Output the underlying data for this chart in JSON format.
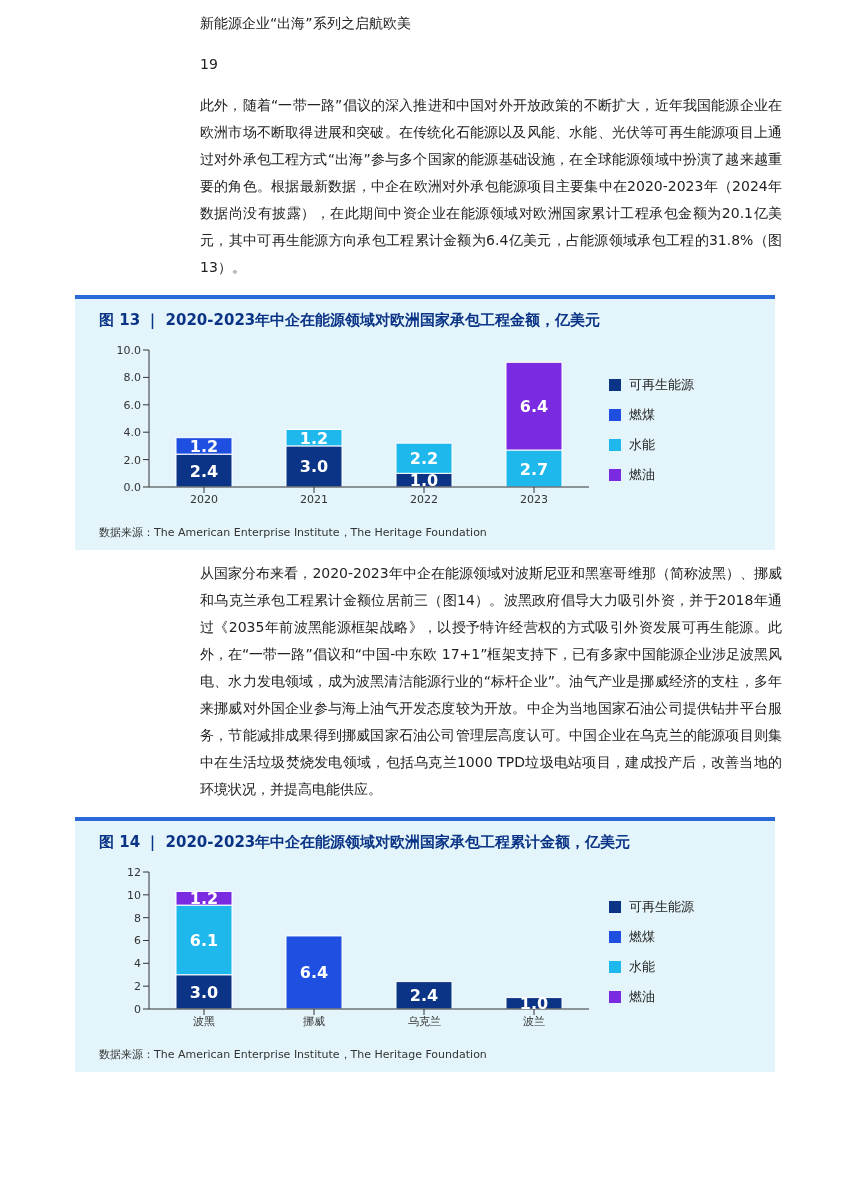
{
  "chart_data": [
    {
      "type": "bar",
      "title": "图 13 ｜ 2020-2023年中企在能源领域对欧洲国家承包工程金额，亿美元",
      "categories": [
        "2020",
        "2021",
        "2022",
        "2023"
      ],
      "stacked": true,
      "legend": "right",
      "grid": false,
      "series": [
        {
          "name": "可再生能源",
          "color": "#0b3486",
          "values": [
            2.4,
            3.0,
            1.0,
            null
          ],
          "value_labels": [
            "2.4",
            "3.0",
            "1.0",
            null
          ]
        },
        {
          "name": "燃煤",
          "color": "#1f4fe0",
          "values": [
            1.2,
            null,
            null,
            null
          ],
          "value_labels": [
            "1.2",
            null,
            null,
            null
          ]
        },
        {
          "name": "水能",
          "color": "#1fb8ec",
          "values": [
            null,
            1.2,
            2.2,
            2.7
          ],
          "value_labels": [
            null,
            "1.2",
            "2.2",
            "2.7"
          ]
        },
        {
          "name": "燃油",
          "color": "#7a2ae0",
          "values": [
            null,
            null,
            null,
            6.4
          ],
          "value_labels": [
            null,
            null,
            null,
            "6.4"
          ]
        }
      ],
      "ylim": [
        0,
        10
      ],
      "yticks": [
        {
          "value": 0,
          "label": "0.0"
        },
        {
          "value": 2,
          "label": "2.0"
        },
        {
          "value": 4,
          "label": "4.0"
        },
        {
          "value": 6,
          "label": "6.0"
        },
        {
          "value": 8,
          "label": "8.0"
        },
        {
          "value": 10,
          "label": "10.0"
        }
      ],
      "annotations": [
        "新能源企业“出海”系列之启航欧美",
        "19",
        "此外，随着“一带一路”倡议的深入推进和中国对外开放政策的不断扩大，近年我国能源企业在欧洲市场不断取得进展和突破。在传统化石能源以及风能、水能、光伏等可再生能源项目上通过对外承包工程方式“出海”参与多个国家的能源基础设施，在全球能源领域中扮演了越来越重要的角色。根据最新数据，中企在欧洲对外承包能源项目主要集中在2020-2023年（2024年数据尚没有披露），在此期间中资企业在能源领域对欧洲国家累计工程承包金额为20.1亿美元，其中可再生能源方向承包工程累计金额为6.4亿美元，占能源领域承包工程的31.8%（图13）。",
        "数据来源：The American Enterprise Institute，The Heritage Foundation"
      ]
    },
    {
      "type": "bar",
      "title": "图 14 ｜ 2020-2023年中企在能源领域对欧洲国家承包工程累计金额，亿美元",
      "categories": [
        "波黑",
        "挪威",
        "乌克兰",
        "波兰"
      ],
      "stacked": true,
      "legend": "right",
      "grid": false,
      "series": [
        {
          "name": "可再生能源",
          "color": "#0b3486",
          "values": [
            3.0,
            null,
            2.4,
            1.0
          ],
          "value_labels": [
            "3.0",
            null,
            "2.4",
            "1.0"
          ]
        },
        {
          "name": "燃煤",
          "color": "#1f4fe0",
          "values": [
            null,
            6.4,
            null,
            null
          ],
          "value_labels": [
            null,
            "6.4",
            null,
            null
          ]
        },
        {
          "name": "水能",
          "color": "#1fb8ec",
          "values": [
            6.1,
            null,
            null,
            null
          ],
          "value_labels": [
            "6.1",
            null,
            null,
            null
          ]
        },
        {
          "name": "燃油",
          "color": "#7a2ae0",
          "values": [
            1.2,
            null,
            null,
            null
          ],
          "value_labels": [
            "1.2",
            null,
            null,
            null
          ]
        }
      ],
      "ylim": [
        0,
        12
      ],
      "yticks": [
        0,
        2,
        4,
        6,
        8,
        10,
        12
      ],
      "annotations": [
        "从国家分布来看，2020-2023年中企在能源领域对波斯尼亚和黑塞哥维那（简称波黑）、挪威和乌克兰承包工程累计金额位居前三（图14）。波黑政府倡导大力吸引外资，并于2018年通过《2035年前波黑能源框架战略》，以授予特许经营权的方式吸引外资发展可再生能源。此外，在“一带一路”倡议和“中国-中东欧 17+1”框架支持下，已有多家中国能源企业涉足波黑风电、水力发电领域，成为波黑清洁能源行业的“标杆企业”。油气产业是挪威经济的支柱，多年来挪威对外国企业参与海上油气开发态度较为开放。中企为当地国家石油公司提供钻井平台服务，节能减排成果得到挪威国家石油公司管理层高度认可。中国企业在乌克兰的能源项目则集中在生活垃圾焚烧发电领域，包括乌克兰1000 TPD垃圾电站项目，建成投产后，改善当地的环境状况，并提高电能供应。",
        "数据来源：The American Enterprise Institute，The Heritage Foundation"
      ]
    }
  ]
}
